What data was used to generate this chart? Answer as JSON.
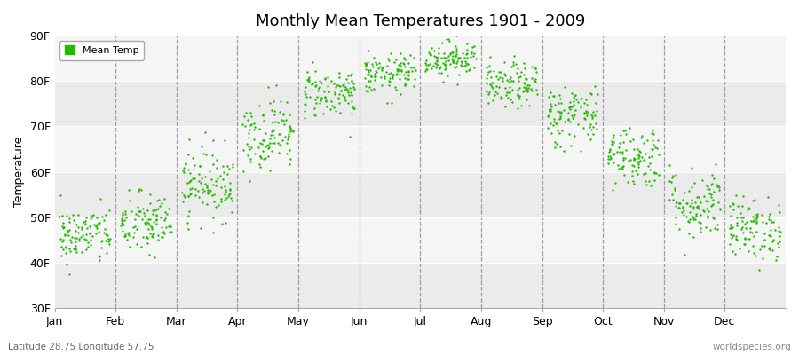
{
  "title": "Monthly Mean Temperatures 1901 - 2009",
  "ylabel": "Temperature",
  "ylim": [
    30,
    90
  ],
  "yticks": [
    30,
    40,
    50,
    60,
    70,
    80,
    90
  ],
  "ytick_labels": [
    "30F",
    "40F",
    "50F",
    "60F",
    "70F",
    "80F",
    "90F"
  ],
  "months": [
    "Jan",
    "Feb",
    "Mar",
    "Apr",
    "May",
    "Jun",
    "Jul",
    "Aug",
    "Sep",
    "Oct",
    "Nov",
    "Dec"
  ],
  "dot_color": "#22BB00",
  "bg_color": "#FFFFFF",
  "band_color_dark": "#EBEBEB",
  "band_color_light": "#F5F5F5",
  "legend_label": "Mean Temp",
  "subtitle_left": "Latitude 28.75 Longitude 57.75",
  "subtitle_right": "worldspecies.org",
  "monthly_means": [
    46.0,
    48.5,
    57.5,
    68.5,
    77.5,
    81.5,
    85.0,
    79.0,
    72.5,
    63.5,
    53.0,
    47.5
  ],
  "monthly_stds": [
    3.2,
    3.5,
    4.0,
    4.0,
    2.8,
    2.2,
    2.0,
    2.5,
    3.5,
    3.5,
    4.0,
    3.5
  ],
  "n_years": 109,
  "random_seed": 42
}
